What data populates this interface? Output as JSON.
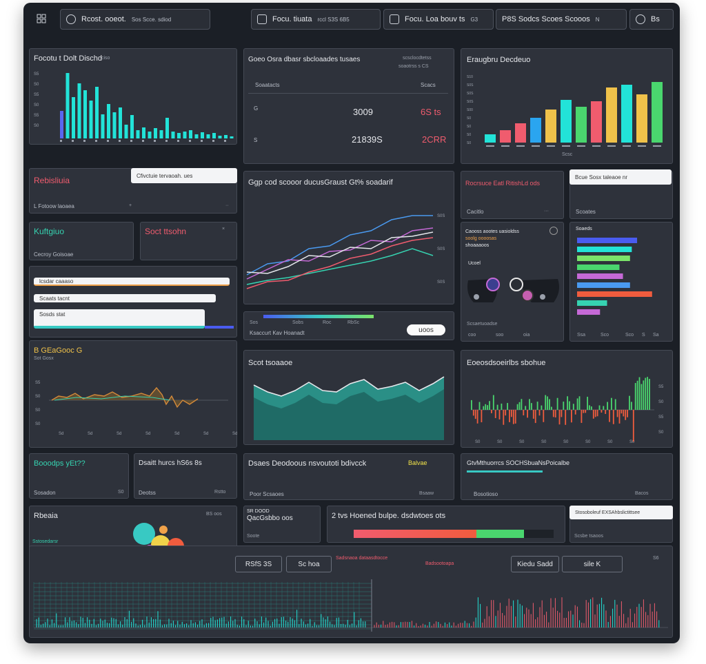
{
  "toolbar": {
    "items": [
      {
        "label": "Rcost. ooeot.",
        "extra": "Sos  Scce. sdiod"
      },
      {
        "label": "Focu. tiuata",
        "extra": "rccl  S3S  6B5"
      },
      {
        "label": "Focu. Loa bouv ts",
        "extra": "G3"
      },
      {
        "label": "P8S Sodcs  Scoes  Scooos",
        "extra": "N"
      },
      {
        "label": "Bs",
        "extra": ""
      }
    ]
  },
  "panels": {
    "bar_top_left": {
      "title": "Focotu t  Dolt Dischd",
      "suffix": "ciso",
      "tick_labels": [
        "S5",
        "S0",
        "S5",
        "S0",
        "S5",
        "S0"
      ]
    },
    "stats": {
      "title": "Goeo Osra dbasr  sbcloaades  tusaes",
      "sub1": "scsclocdtetss",
      "sub2": "soaotrss s  CS",
      "col1": "Soaatacts",
      "col2": "Scacs",
      "v1a": "3009",
      "v1b": "6S ts",
      "v2a": "21839S",
      "v2b": "2CRR",
      "ylab1": "G",
      "ylab2": "S"
    },
    "bar_top_right": {
      "title": "Eraugbru Decdeuo",
      "footer": "Scsc",
      "yticks": [
        "S10",
        "S0S",
        "S0S",
        "S0S",
        "S00",
        "S0",
        "S0",
        "S0",
        "S0"
      ]
    },
    "red_stat": {
      "title": "Rebisliuia",
      "sub": "L Fotoow laoaea",
      "tooltip": "Cfivctuie tervaoah. ues"
    },
    "line_main": {
      "title": "Ggp cod scooor ducusGraust Gt% soadarif",
      "right_ticks": [
        "S0S",
        "S0S",
        "S0S"
      ]
    },
    "teal_card": {
      "title": "Kuftgiuo",
      "sub": "Cecroy Goisoae"
    },
    "red_card": {
      "title": "Soct ttsohn"
    },
    "form_rows": [
      {
        "label": "lcsdar caaaso"
      },
      {
        "label": "Scaats tacnt"
      },
      {
        "label": "Sosds stat"
      }
    ],
    "legend_strip": {
      "labels": [
        "Sos",
        "Sobs",
        "Roc",
        "RbSc"
      ],
      "text": "Ksaccurt Kav Hoanadt",
      "button": "uoos"
    },
    "gauge_red": {
      "title": "Rocrsuce Eatl RitishLd ods",
      "sub": "Cacitlo"
    },
    "info_box": {
      "title": "Bcue Sosx taleaoe nr",
      "sub": "Scoates"
    },
    "toggle": {
      "lines": [
        "Caooss aootes uasioldss",
        "soolg oooosas",
        "shoaaaoos"
      ],
      "label": "Ucoel",
      "footer": "Scsaetuoadse",
      "bottom": [
        "coo",
        "soo",
        "oia"
      ]
    },
    "hbars": {
      "title": "Soaeds",
      "footer": [
        "Ssa",
        "Sco",
        "Sco",
        "S",
        "Sa"
      ]
    },
    "line_left": {
      "title": "B GEaGooc  G",
      "sub": "Sot  Gosx",
      "yticks": [
        "S5",
        "S0",
        "S0",
        "S0"
      ],
      "xticks": [
        "Sd",
        "Sd",
        "Sd",
        "Sd",
        "Sd",
        "Sd",
        "Sd"
      ]
    },
    "area": {
      "title": "Scot  tsoaaoe"
    },
    "candles": {
      "title": "Eoeosdsoeirlbs  sbohue",
      "yticks": [
        "S5",
        "S0",
        "S5",
        "S0"
      ],
      "xticks": [
        "S0",
        "S0",
        "S0",
        "S0",
        "S0",
        "S0",
        "S0",
        "S0"
      ]
    },
    "kpi_row": [
      {
        "title": "Booodps yEt??",
        "sub": "Sosadon",
        "val": "S0"
      },
      {
        "title": "Dsaitt  hurcs  hS6s  8s",
        "sub": "Deotss",
        "val": "Rstto"
      },
      {
        "title": "Dsaes  Deodoous  nsvoutoti  bdivcck",
        "badge": "Balvae",
        "sub": "Poor Scsaoes",
        "val": "Bsaaw"
      },
      {
        "title": "GtvMthuorrcs  SOCHSbuaNsPoicalbe",
        "sub": "Bosotioso",
        "val": "Bacos"
      }
    ],
    "bubble": {
      "title": "Rbeaia",
      "sub": "Sstosedarsr",
      "corner": "BS  oos"
    },
    "small_card": {
      "title": "SR  DOOD",
      "sub": "QacGsbbo  oos",
      "footer": "Soote"
    },
    "progress": {
      "title": "2 tvs  Hoened bulpe. dsdwtoes ots",
      "value": 0.85
    },
    "right_tag": {
      "label": "Stosoboleuf EXSAhbslictittsee",
      "sub": "Scsbe  tsaoos"
    },
    "bottom": {
      "btn1": "RSfS  3S",
      "btn2": "Sc  hoa",
      "title": "Sadsnaoa  dataasdtocce",
      "t2": "Badsootoapa",
      "btn3": "Kiedu  Sadd",
      "btn4": "sile  K",
      "corner": "S6"
    }
  }
}
